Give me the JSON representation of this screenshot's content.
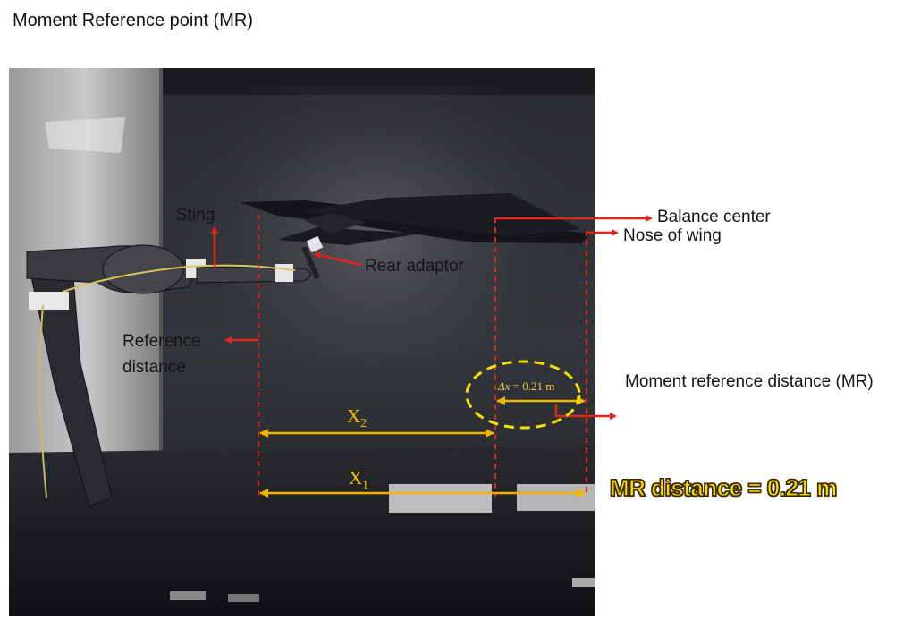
{
  "title": "Moment Reference point (MR)",
  "labels": {
    "sting": "Sting",
    "rear_adaptor": "Rear adaptor",
    "balance_center": "Balance center",
    "nose_of_wing": "Nose of wing",
    "reference_distance": "Reference distance",
    "moment_reference_distance": "Moment reference distance (MR)"
  },
  "dimensions": {
    "x2_label": "X",
    "x2_sub": "2",
    "x1_label": "X",
    "x1_sub": "1",
    "delta_symbol": "Δx",
    "delta_value": " = 0.21 m"
  },
  "highlight": "MR distance = 0.21 m",
  "colors": {
    "arrow_red": "#e0261b",
    "dim_yellow": "#f2b400",
    "ellipse_yellow": "#f5e100",
    "highlight_yellow": "#ffd400"
  }
}
